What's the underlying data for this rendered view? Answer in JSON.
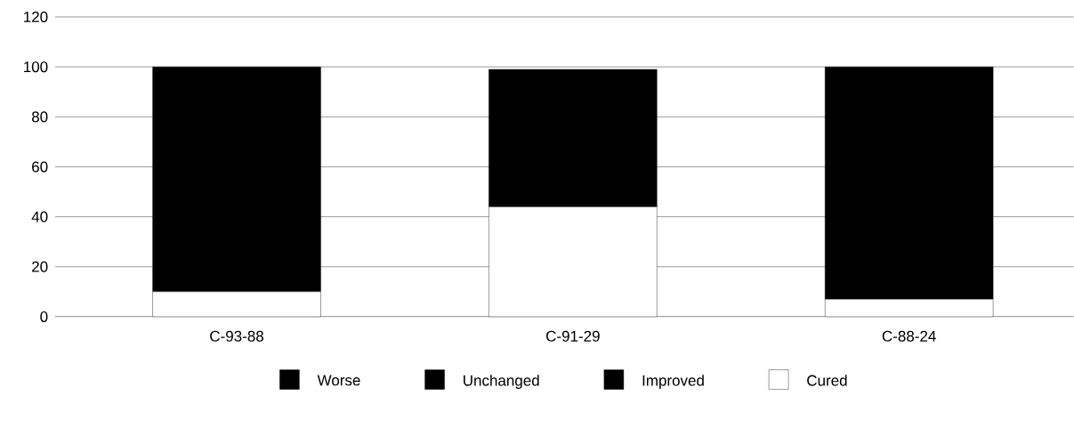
{
  "chart_data": {
    "type": "bar",
    "stacked": true,
    "categories": [
      "C-93-88",
      "C-91-29",
      "C-88-24"
    ],
    "series": [
      {
        "name": "Cured",
        "color": "#ffffff",
        "values": [
          10,
          44,
          7
        ]
      },
      {
        "name": "Improved",
        "color": "#000000",
        "values": [
          90,
          55,
          93
        ]
      },
      {
        "name": "Unchanged",
        "color": "#000000",
        "values": [
          null,
          null,
          null
        ]
      },
      {
        "name": "Worse",
        "color": "#000000",
        "values": [
          null,
          null,
          null
        ]
      }
    ],
    "ylim": [
      0,
      120
    ],
    "yticks": [
      0,
      20,
      40,
      60,
      80,
      100,
      120
    ],
    "grid": "y",
    "legend": "bottom"
  }
}
